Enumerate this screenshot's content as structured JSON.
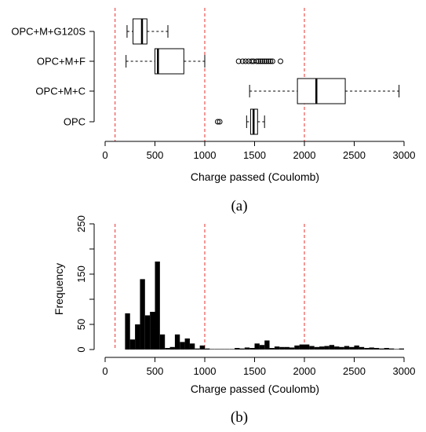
{
  "chart_data": [
    {
      "type": "boxplot",
      "caption": "(a)",
      "xlabel": "Charge passed (Coulomb)",
      "xlim": [
        0,
        3000
      ],
      "xticks": [
        0,
        500,
        1000,
        1500,
        2000,
        2500,
        3000
      ],
      "reference_lines": [
        100,
        1000,
        2000
      ],
      "reference_line_color": "#e8302c",
      "categories": [
        "OPC+M+G120S",
        "OPC+M+F",
        "OPC+M+C",
        "OPC"
      ],
      "boxes": [
        {
          "name": "OPC+M+G120S",
          "whisker_low": 220,
          "q1": 280,
          "median": 370,
          "q3": 420,
          "whisker_high": 630,
          "outliers": []
        },
        {
          "name": "OPC+M+F",
          "whisker_low": 210,
          "q1": 500,
          "median": 530,
          "q3": 790,
          "whisker_high": 1000,
          "outliers": [
            1340,
            1380,
            1410,
            1440,
            1470,
            1490,
            1520,
            1540,
            1560,
            1580,
            1600,
            1620,
            1640,
            1660,
            1680,
            1760
          ]
        },
        {
          "name": "OPC+M+C",
          "whisker_low": 1450,
          "q1": 1930,
          "median": 2120,
          "q3": 2410,
          "whisker_high": 2950,
          "outliers": []
        },
        {
          "name": "OPC",
          "whisker_low": 1420,
          "q1": 1460,
          "median": 1490,
          "q3": 1530,
          "whisker_high": 1600,
          "outliers": [
            1130,
            1150
          ]
        }
      ]
    },
    {
      "type": "histogram",
      "caption": "(b)",
      "xlabel": "Charge passed (Coulomb)",
      "ylabel": "Frequency",
      "xlim": [
        0,
        3000
      ],
      "ylim": [
        0,
        250
      ],
      "xticks": [
        0,
        500,
        1000,
        1500,
        2000,
        2500,
        3000
      ],
      "yticks": [
        0,
        50,
        150,
        250
      ],
      "reference_lines": [
        100,
        1000,
        2000
      ],
      "reference_line_color": "#e8302c",
      "bar_color": "#000000",
      "bin_width": 50,
      "bins_start": [
        200,
        250,
        300,
        350,
        400,
        450,
        500,
        550,
        600,
        650,
        700,
        750,
        800,
        850,
        900,
        950,
        1000,
        1050,
        1100,
        1150,
        1200,
        1250,
        1300,
        1350,
        1400,
        1450,
        1500,
        1550,
        1600,
        1650,
        1700,
        1750,
        1800,
        1850,
        1900,
        1950,
        2000,
        2050,
        2100,
        2150,
        2200,
        2250,
        2300,
        2350,
        2400,
        2450,
        2500,
        2550,
        2600,
        2650,
        2700,
        2750,
        2800,
        2850,
        2900,
        2950
      ],
      "frequencies": [
        72,
        20,
        50,
        140,
        68,
        75,
        175,
        30,
        3,
        5,
        30,
        15,
        22,
        12,
        2,
        8,
        2,
        1,
        1,
        1,
        1,
        1,
        3,
        2,
        4,
        3,
        12,
        9,
        18,
        3,
        6,
        5,
        5,
        4,
        8,
        10,
        10,
        7,
        5,
        6,
        7,
        9,
        6,
        5,
        7,
        5,
        8,
        5,
        3,
        4,
        3,
        2,
        3,
        2,
        1,
        2
      ]
    }
  ]
}
